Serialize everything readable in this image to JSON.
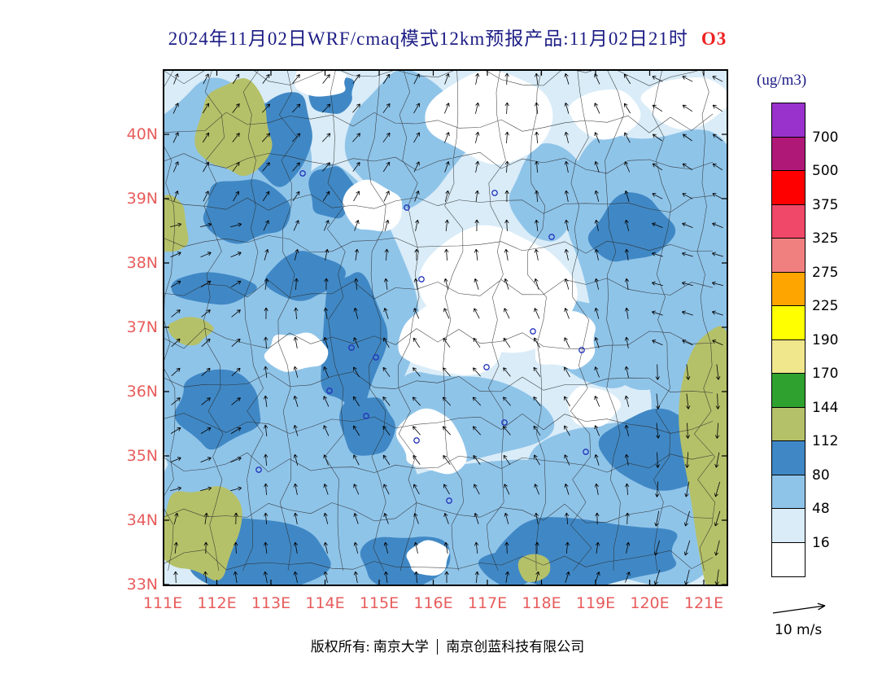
{
  "title": {
    "text": "2024年11月02日WRF/cmaq模式12km预报产品:11月02日21时",
    "pollutant": "O3"
  },
  "colors": {
    "title": "#1C1C85",
    "pollutant": "#EE2222",
    "axis_labels": "#E85C5C",
    "map_base": "#D9ECF8",
    "map_light_blue": "#8FC4E9",
    "map_dark_blue": "#4088C5",
    "map_olive": "#B5C169",
    "map_white": "#FFFFFF",
    "boundary": "#2A2A2A",
    "marker": "#2233BB"
  },
  "axes": {
    "lat_labels": [
      "40N",
      "39N",
      "38N",
      "37N",
      "36N",
      "35N",
      "34N",
      "33N"
    ],
    "lon_labels": [
      "111E",
      "112E",
      "113E",
      "114E",
      "115E",
      "116E",
      "117E",
      "118E",
      "119E",
      "120E",
      "121E"
    ]
  },
  "colorbar": {
    "units": "(ug/m3)",
    "labels": [
      "700",
      "500",
      "375",
      "325",
      "275",
      "225",
      "190",
      "170",
      "144",
      "112",
      "80",
      "48",
      "16"
    ],
    "colors": [
      "#9932CC",
      "#B01878",
      "#FF0000",
      "#F04868",
      "#F08080",
      "#FFA500",
      "#FFFF00",
      "#F0E68C",
      "#2FA12F",
      "#B5C169",
      "#4088C5",
      "#8FC4E9",
      "#D9ECF8",
      "#FFFFFF"
    ]
  },
  "wind": {
    "label": "10 m/s"
  },
  "footer": {
    "owner": "版权所有: 南京大学",
    "company": "南京创蓝科技有限公司"
  },
  "chart_data": {
    "type": "heatmap",
    "title": "2024年11月02日WRF/cmaq模式12km预报产品:11月02日21时",
    "pollutant": "O3",
    "units": "(ug/m3)",
    "x_ticks": [
      "111E",
      "112E",
      "113E",
      "114E",
      "115E",
      "116E",
      "117E",
      "118E",
      "119E",
      "120E",
      "121E"
    ],
    "y_ticks": [
      "40N",
      "39N",
      "38N",
      "37N",
      "36N",
      "35N",
      "34N",
      "33N"
    ],
    "x_range_deg": [
      111,
      121.45
    ],
    "y_range_deg": [
      32.97,
      41.0
    ],
    "colorbar_levels": [
      16,
      48,
      80,
      112,
      144,
      170,
      190,
      225,
      275,
      325,
      375,
      500,
      700
    ],
    "colorbar_colors_top_to_bottom": [
      "#9932CC",
      "#B01878",
      "#FF0000",
      "#F04868",
      "#F08080",
      "#FFA500",
      "#FFFF00",
      "#F0E68C",
      "#2FA12F",
      "#B5C169",
      "#4088C5",
      "#8FC4E9",
      "#D9ECF8",
      "#FFFFFF"
    ],
    "legend_position": "right",
    "grid": false,
    "wind_reference": "10 m/s",
    "observed_field_summary": "Filled O3 concentration contours mostly 16-112 ug/m3: white (<16) pockets in the center and top-center, pale blue (16-48) widespread, light blue (48-80) bands, dark blue (80-112) bands in NW, central column 114-115E, east patch near 119.5E/38.5N and along the southern rows 33-34.5N; olive (112-144) patches in the NW corner, SW corner, lower-left edge and a tall strip along the eastern edge 120.7-121.4E; black wind vectors overlaid, generally northward in the interior, westward-turning on the east side and strong southward flow in the southeast corner."
  }
}
